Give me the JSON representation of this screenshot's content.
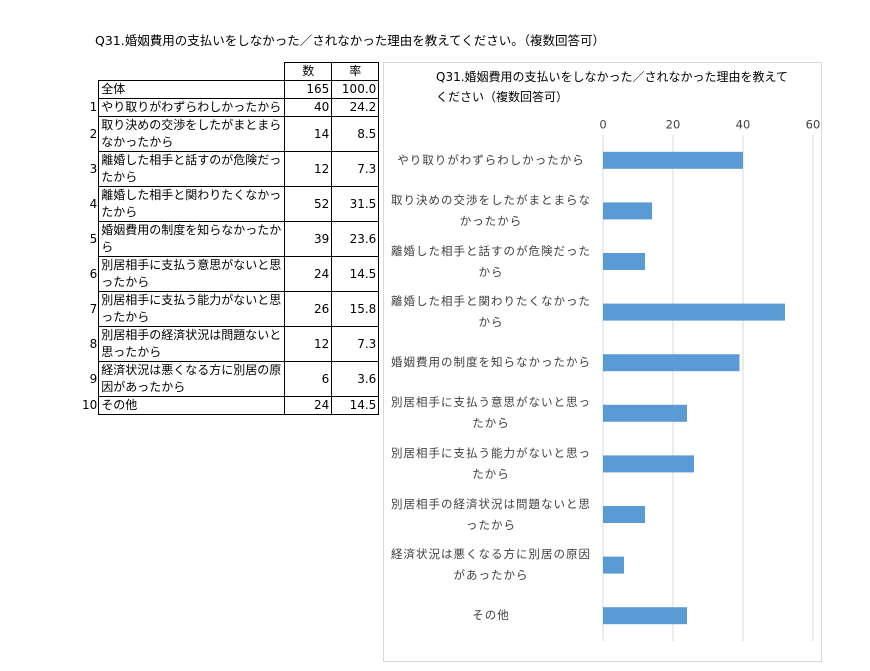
{
  "title": "Q31.婚姻費用の支払いをしなかった／されなかった理由を教えてください。（複数回答可）",
  "table": {
    "header": [
      "数",
      "率"
    ],
    "total": {
      "label": "全体",
      "count": 165,
      "rate": "100.0"
    },
    "rows": [
      {
        "no": 1,
        "label": "やり取りがわずらわしかったから",
        "count": 40,
        "rate": "24.2"
      },
      {
        "no": 2,
        "label": "取り決めの交渉をしたがまとまらなかったから",
        "count": 14,
        "rate": "8.5"
      },
      {
        "no": 3,
        "label": "離婚した相手と話すのが危険だったから",
        "count": 12,
        "rate": "7.3"
      },
      {
        "no": 4,
        "label": "離婚した相手と関わりたくなかったから",
        "count": 52,
        "rate": "31.5"
      },
      {
        "no": 5,
        "label": "婚姻費用の制度を知らなかったから",
        "count": 39,
        "rate": "23.6"
      },
      {
        "no": 6,
        "label": "別居相手に支払う意思がないと思ったから",
        "count": 24,
        "rate": "14.5"
      },
      {
        "no": 7,
        "label": "別居相手に支払う能力がないと思ったから",
        "count": 26,
        "rate": "15.8"
      },
      {
        "no": 8,
        "label": "別居相手の経済状況は問題ないと思ったから",
        "count": 12,
        "rate": "7.3"
      },
      {
        "no": 9,
        "label": "経済状況は悪くなる方に別居の原因があったから",
        "count": 6,
        "rate": "3.6"
      },
      {
        "no": 10,
        "label": "その他",
        "count": 24,
        "rate": "14.5"
      }
    ]
  },
  "chart_data": {
    "type": "barh",
    "title": "Q31.婚姻費用の支払いをしなかった／されなかった理由を教えてください（複数回答可）",
    "categories": [
      "やり取りがわずらわしかったから",
      "取り決めの交渉をしたがまとまらなかったから",
      "離婚した相手と話すのが危険だったから",
      "離婚した相手と関わりたくなかったから",
      "婚姻費用の制度を知らなかったから",
      "別居相手に支払う意思がないと思ったから",
      "別居相手に支払う能力がないと思ったから",
      "別居相手の経済状況は問題ないと思ったから",
      "経済状況は悪くなる方に別居の原因があったから",
      "その他"
    ],
    "values": [
      40,
      14,
      12,
      52,
      39,
      24,
      26,
      12,
      6,
      24
    ],
    "color": "#5b9bd5",
    "xlim": [
      0,
      60
    ],
    "xticks": [
      0,
      20,
      40,
      60
    ],
    "grid": true
  }
}
